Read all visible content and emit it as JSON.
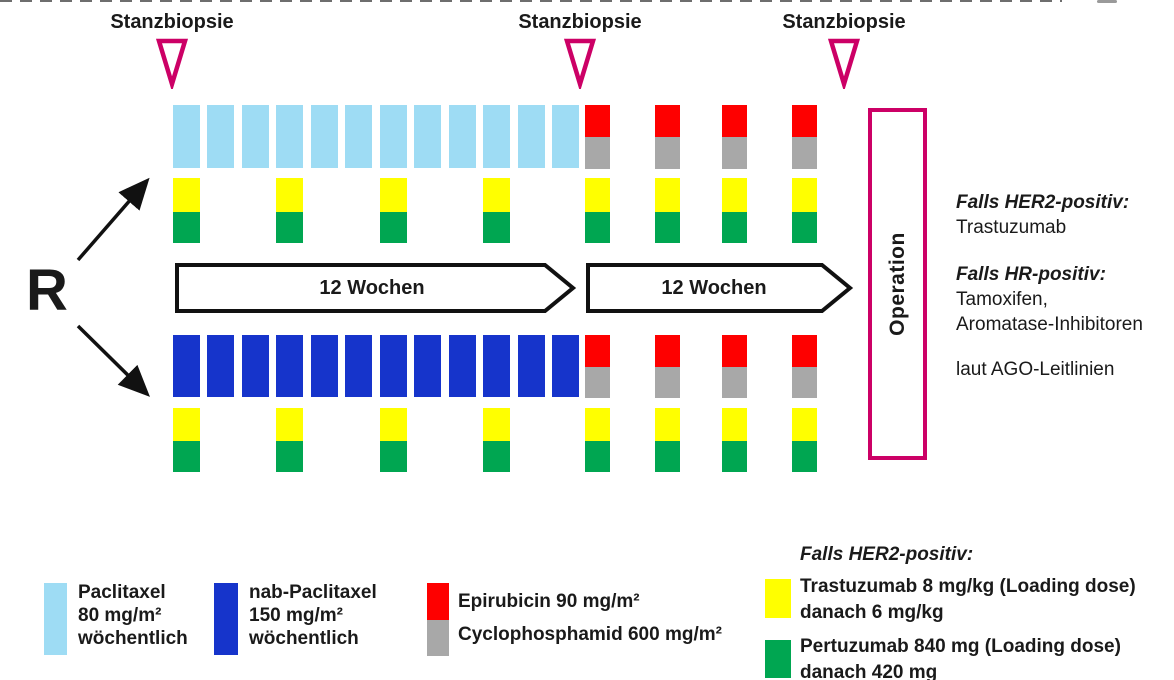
{
  "colors": {
    "paclitaxel_light_blue": "#9EDCF4",
    "nab_paclitaxel_dark_blue": "#1634CB",
    "epirubicin_red": "#FE0000",
    "cyclophosphamid_gray": "#A8A8A8",
    "trastuzumab_yellow": "#FFFF00",
    "pertuzumab_green": "#00A651",
    "marker_magenta": "#CC0066",
    "outline_black": "#111111"
  },
  "schedule": {
    "randomization_label": "R",
    "biopsy_label": "Stanzbiopsie",
    "biopsy_count": 3,
    "phase1_label": "12 Wochen",
    "phase2_label": "12 Wochen",
    "operation_label": "Operation",
    "weekly_doses_per_arm": 12,
    "ec_cycles_per_arm": 4,
    "her2_dose_slots_per_arm": 8,
    "arms": [
      {
        "name": "Paclitaxel arm",
        "weekly_agent": "Paclitaxel",
        "color_key": "paclitaxel_light_blue"
      },
      {
        "name": "nab-Paclitaxel arm",
        "weekly_agent": "nab-Paclitaxel",
        "color_key": "nab_paclitaxel_dark_blue"
      }
    ]
  },
  "notes": {
    "her2_header": "Falls HER2-positiv:",
    "her2_line": "Trastuzumab",
    "hr_header": "Falls HR-positiv:",
    "hr_line1": "Tamoxifen,",
    "hr_line2": "Aromatase-Inhibitoren",
    "guideline_line": "laut AGO-Leitlinien"
  },
  "legend": {
    "paclitaxel": {
      "line1": "Paclitaxel",
      "line2": "80 mg/m²",
      "line3": "wöchentlich"
    },
    "nab_paclitaxel": {
      "line1": "nab-Paclitaxel",
      "line2": "150 mg/m²",
      "line3": "wöchentlich"
    },
    "epirubicin": "Epirubicin 90 mg/m²",
    "cyclophosphamid": "Cyclophosphamid 600 mg/m²",
    "her2_header": "Falls HER2-positiv:",
    "trastuzumab_line1": "Trastuzumab 8 mg/kg (Loading dose)",
    "trastuzumab_line2": "danach 6 mg/kg",
    "pertuzumab_line1": "Pertuzumab 840 mg (Loading dose)",
    "pertuzumab_line2": "danach 420 mg"
  }
}
